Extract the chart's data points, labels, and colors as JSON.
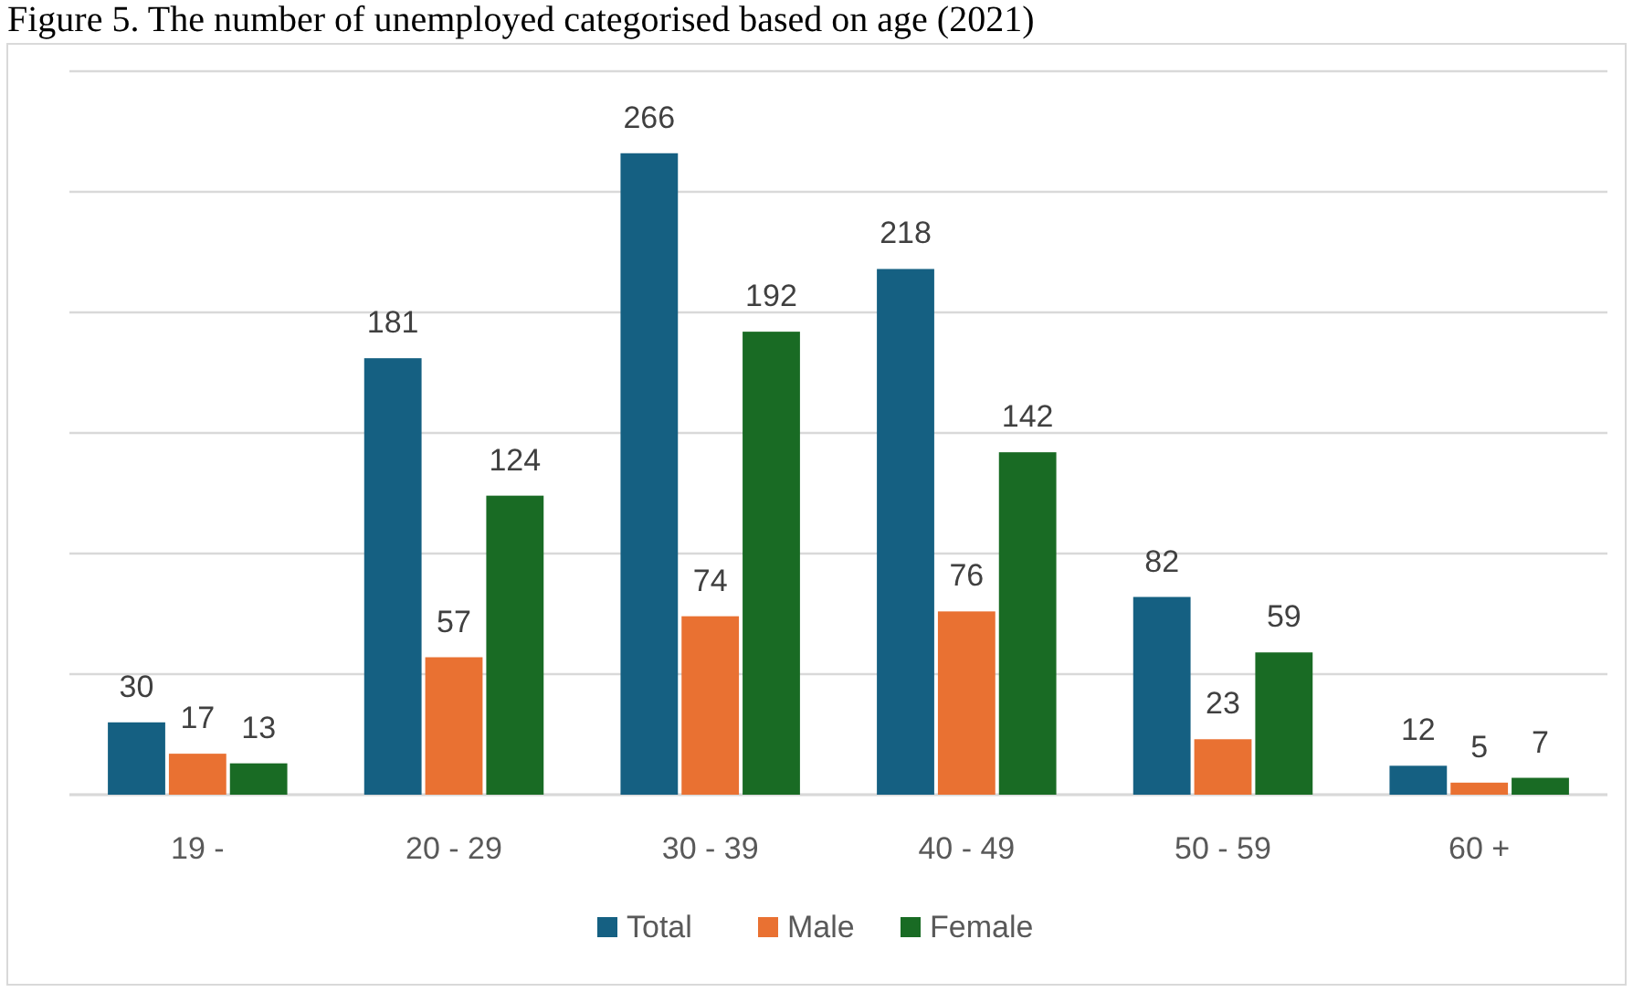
{
  "chart_data": {
    "type": "bar",
    "title": "Figure 5. The number of unemployed categorised based on age (2021)",
    "categories": [
      "19 -",
      "20 - 29",
      "30 - 39",
      "40 - 49",
      "50 - 59",
      "60 +"
    ],
    "series": [
      {
        "name": "Total",
        "color": "#156082",
        "values": [
          30,
          181,
          266,
          218,
          82,
          12
        ]
      },
      {
        "name": "Male",
        "color": "#e97132",
        "values": [
          17,
          57,
          74,
          76,
          23,
          5
        ]
      },
      {
        "name": "Female",
        "color": "#196b24",
        "values": [
          13,
          124,
          192,
          142,
          59,
          7
        ]
      }
    ],
    "ylim": [
      0,
      300
    ],
    "yticks": [
      {
        "value": 0,
        "label": null
      },
      {
        "value": 50,
        "label": null
      },
      {
        "value": 100,
        "label": null
      },
      {
        "value": 150,
        "label": null
      },
      {
        "value": 200,
        "label": null
      },
      {
        "value": 250,
        "label": null
      },
      {
        "value": 300,
        "label": null
      }
    ],
    "tick_labels": "x",
    "grid": "y",
    "legend": "bottom",
    "data_labels": true
  }
}
